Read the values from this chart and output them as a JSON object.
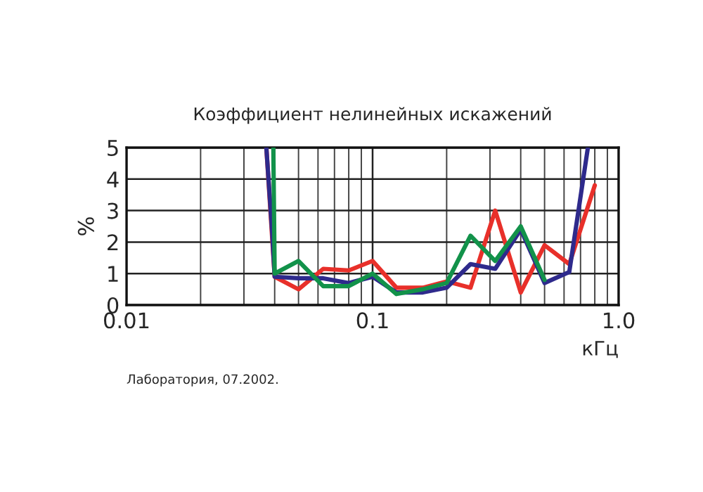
{
  "chart_data": {
    "type": "line",
    "title": "Коэффициент нелинейных искажений",
    "xlabel": "кГц",
    "ylabel": "%",
    "log": "x",
    "grid": true,
    "legend": false,
    "marker": "none",
    "line_style": "solid",
    "xlim": [
      0.01,
      1
    ],
    "xticks": [
      0.01,
      0.1,
      {
        "value": 1,
        "label": "1.0"
      }
    ],
    "ylim": [
      0,
      5
    ],
    "yticks": [
      0,
      1,
      2,
      3,
      4,
      5
    ],
    "annotations": [
      "Лаборатория, 07.2002."
    ],
    "series": [
      {
        "color": "#e8302a",
        "x": [
          0.037,
          0.04,
          0.05,
          0.063,
          0.08,
          0.1,
          0.125,
          0.16,
          0.2,
          0.25,
          0.315,
          0.4,
          0.5,
          0.63,
          0.8
        ],
        "values": [
          5,
          0.9,
          0.5,
          1.15,
          1.1,
          1.4,
          0.55,
          0.55,
          0.75,
          0.55,
          3.0,
          0.4,
          1.9,
          1.3,
          3.8
        ]
      },
      {
        "color": "#2e2a8c",
        "x": [
          0.037,
          0.039,
          0.04,
          0.05,
          0.063,
          0.08,
          0.1,
          0.125,
          0.16,
          0.2,
          0.25,
          0.315,
          0.4,
          0.5,
          0.63,
          0.75
        ],
        "values": [
          5,
          2.4,
          0.9,
          0.85,
          0.85,
          0.7,
          0.9,
          0.4,
          0.4,
          0.55,
          1.3,
          1.15,
          2.4,
          0.7,
          1.05,
          5
        ]
      },
      {
        "color": "#12924a",
        "x": [
          0.0395,
          0.04,
          0.05,
          0.063,
          0.08,
          0.1,
          0.125,
          0.16,
          0.2,
          0.25,
          0.315,
          0.4,
          0.5
        ],
        "values": [
          5,
          1.0,
          1.4,
          0.6,
          0.6,
          1.0,
          0.35,
          0.5,
          0.7,
          2.2,
          1.4,
          2.5,
          0.8
        ]
      }
    ]
  }
}
